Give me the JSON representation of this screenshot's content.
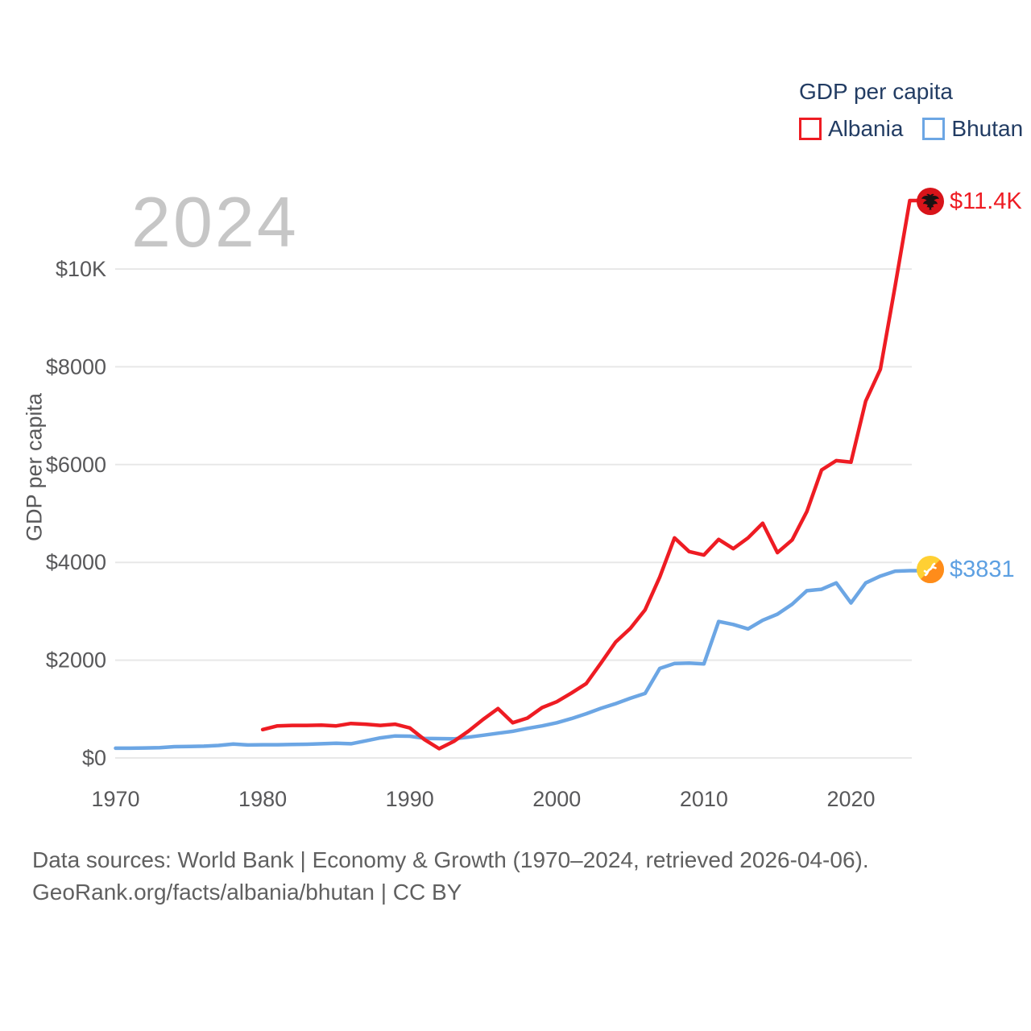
{
  "watermark": {
    "year": "2024",
    "color": "#c6c6c6"
  },
  "footer": {
    "line1": "Data sources: World Bank | Economy & Growth (1970–2024, retrieved 2026-04-06).",
    "line2": "GeoRank.org/facts/albania/bhutan | CC BY"
  },
  "chart_data": {
    "type": "line",
    "title": "GDP per capita",
    "xlabel": "",
    "ylabel": "GDP per capita",
    "xlim": [
      1970,
      2024
    ],
    "ylim": [
      0,
      11400
    ],
    "grid": "horizontal-only",
    "gridline_color": "#e8e8e8",
    "legend_position": "top-right",
    "x_ticks": [
      1970,
      1980,
      1990,
      2000,
      2010,
      2020
    ],
    "y_ticks": [
      {
        "value": 0,
        "label": "$0"
      },
      {
        "value": 2000,
        "label": "$2000"
      },
      {
        "value": 4000,
        "label": "$4000"
      },
      {
        "value": 6000,
        "label": "$6000"
      },
      {
        "value": 8000,
        "label": "$8000"
      },
      {
        "value": 10000,
        "label": "$10K"
      }
    ],
    "series": [
      {
        "name": "Albania",
        "color": "#ee1c23",
        "start_year": 1980,
        "end_value_label": "$11.4K",
        "end_flag": "albania-flag",
        "values": [
          580,
          655,
          665,
          665,
          670,
          655,
          705,
          690,
          665,
          690,
          615,
          375,
          190,
          340,
          550,
          790,
          1010,
          720,
          815,
          1030,
          1150,
          1330,
          1520,
          1940,
          2370,
          2650,
          3030,
          3700,
          4500,
          4220,
          4150,
          4470,
          4280,
          4500,
          4800,
          4200,
          4460,
          5040,
          5890,
          6080,
          6050,
          7300,
          7950,
          9650,
          11400
        ]
      },
      {
        "name": "Bhutan",
        "color": "#6ca6e4",
        "start_year": 1970,
        "end_value_label": "$3831",
        "end_flag": "bhutan-flag",
        "values": [
          200,
          200,
          205,
          210,
          230,
          235,
          240,
          255,
          285,
          265,
          270,
          270,
          275,
          280,
          290,
          300,
          290,
          350,
          410,
          450,
          445,
          400,
          395,
          390,
          425,
          465,
          505,
          545,
          605,
          655,
          720,
          805,
          905,
          1015,
          1110,
          1220,
          1320,
          1830,
          1930,
          1940,
          1925,
          2790,
          2730,
          2640,
          2815,
          2940,
          3145,
          3420,
          3450,
          3580,
          3170,
          3580,
          3720,
          3820,
          3831
        ]
      }
    ]
  }
}
